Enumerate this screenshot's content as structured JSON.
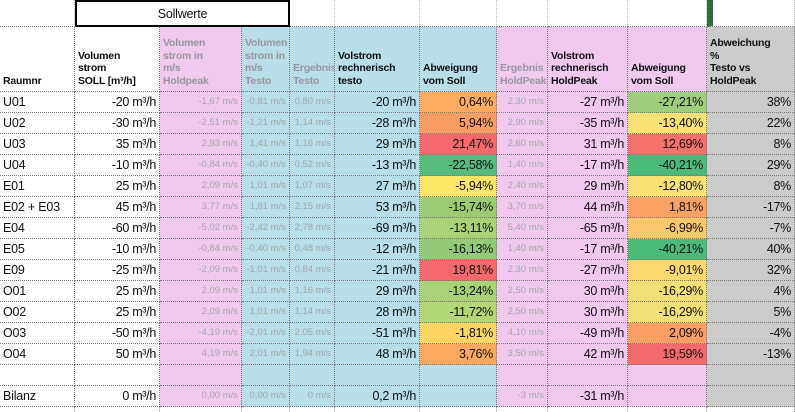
{
  "colors": {
    "pink": "#F1C9EF",
    "blue": "#B7DEE9",
    "grey": "#CBCBCB",
    "dark_green_strip": "#2F6C3B"
  },
  "header": {
    "sollwerte": "Sollwerte",
    "raumnr": "Raumnr",
    "soll": "Volumen\nstrom\nSOLL [m³/h]",
    "hold_ms": "Volumen\nstrom in\nm/s\nHoldpeak",
    "testo_ms": "Volumen\nstrom in\nm/s\nTesto",
    "erg_testo": "Ergebnis\nTesto",
    "vol_testo": "Volstrom\nrechnerisch\ntesto",
    "abw_testo": "Abweigung\nvom Soll",
    "erg_hold": "Ergebnis\nHoldPeak",
    "vol_hold": "Volstrom\nrechnerisch\nHoldPeak",
    "abw_hold": "Abweigung\nvom Soll",
    "pct": "Abweichung\n%\nTesto vs\nHoldPeak"
  },
  "rows": [
    {
      "raumnr": "U01",
      "soll": "-20 m³/h",
      "hold_ms": "-1,67 m/s",
      "testo_ms": "-0,81 m/s",
      "erg_testo": "0,80 m/s",
      "vol_testo": "-20 m³/h",
      "abw_testo": "0,64%",
      "abw_testo_color": "#FCAB61",
      "erg_hold": "2,30 m/s",
      "vol_hold": "-27 m³/h",
      "abw_hold": "-27,21%",
      "abw_hold_color": "#9ECD7B",
      "pct": "38%"
    },
    {
      "raumnr": "U02",
      "soll": "-30 m³/h",
      "hold_ms": "-2,51 m/s",
      "testo_ms": "-1,21 m/s",
      "erg_testo": "1,14 m/s",
      "vol_testo": "-28 m³/h",
      "abw_testo": "5,94%",
      "abw_testo_color": "#FA9C63",
      "erg_hold": "2,90 m/s",
      "vol_hold": "-35 m³/h",
      "abw_hold": "-13,40%",
      "abw_hold_color": "#FAE173",
      "pct": "22%"
    },
    {
      "raumnr": "U03",
      "soll": "35 m³/h",
      "hold_ms": "2,93 m/s",
      "testo_ms": "1,41 m/s",
      "erg_testo": "1,16 m/s",
      "vol_testo": "29 m³/h",
      "abw_testo": "21,47%",
      "abw_testo_color": "#F5696D",
      "erg_hold": "2,60 m/s",
      "vol_hold": "31 m³/h",
      "abw_hold": "12,69%",
      "abw_hold_color": "#F4716C",
      "pct": "8%"
    },
    {
      "raumnr": "U04",
      "soll": "-10 m³/h",
      "hold_ms": "-0,84 m/s",
      "testo_ms": "-0,40 m/s",
      "erg_testo": "0,52 m/s",
      "vol_testo": "-13 m³/h",
      "abw_testo": "-22,58%",
      "abw_testo_color": "#56BB7C",
      "erg_hold": "1,40 m/s",
      "vol_hold": "-17 m³/h",
      "abw_hold": "-40,21%",
      "abw_hold_color": "#4CBB7A",
      "pct": "29%"
    },
    {
      "raumnr": "E01",
      "soll": "25 m³/h",
      "hold_ms": "2,09 m/s",
      "testo_ms": "1,01 m/s",
      "erg_testo": "1,07 m/s",
      "vol_testo": "27 m³/h",
      "abw_testo": "-5,94%",
      "abw_testo_color": "#FDE567",
      "erg_hold": "2,40 m/s",
      "vol_hold": "29 m³/h",
      "abw_hold": "-12,80%",
      "abw_hold_color": "#FAE173",
      "pct": "8%"
    },
    {
      "raumnr": "E02 + E03",
      "soll": "45 m³/h",
      "hold_ms": "3,77 m/s",
      "testo_ms": "1,81 m/s",
      "erg_testo": "2,15 m/s",
      "vol_testo": "53 m³/h",
      "abw_testo": "-15,74%",
      "abw_testo_color": "#9CCB73",
      "erg_hold": "3,70 m/s",
      "vol_hold": "44 m³/h",
      "abw_hold": "1,81%",
      "abw_hold_color": "#FAA263",
      "pct": "-17%"
    },
    {
      "raumnr": "E04",
      "soll": "-60 m³/h",
      "hold_ms": "-5,02 m/s",
      "testo_ms": "-2,42 m/s",
      "erg_testo": "2,78 m/s",
      "vol_testo": "-69 m³/h",
      "abw_testo": "-13,11%",
      "abw_testo_color": "#A8D275",
      "erg_hold": "5,40 m/s",
      "vol_hold": "-65 m³/h",
      "abw_hold": "-6,99%",
      "abw_hold_color": "#FBC76D",
      "pct": "-7%"
    },
    {
      "raumnr": "E05",
      "soll": "-10 m³/h",
      "hold_ms": "-0,84 m/s",
      "testo_ms": "-0,40 m/s",
      "erg_testo": "0,48 m/s",
      "vol_testo": "-12 m³/h",
      "abw_testo": "-16,13%",
      "abw_testo_color": "#94C979",
      "erg_hold": "1,40 m/s",
      "vol_hold": "-17 m³/h",
      "abw_hold": "-40,21%",
      "abw_hold_color": "#4CBB7A",
      "pct": "40%"
    },
    {
      "raumnr": "E09",
      "soll": "-25 m³/h",
      "hold_ms": "-2,09 m/s",
      "testo_ms": "-1,01 m/s",
      "erg_testo": "0,84 m/s",
      "vol_testo": "-21 m³/h",
      "abw_testo": "19,81%",
      "abw_testo_color": "#F5696D",
      "erg_hold": "2,30 m/s",
      "vol_hold": "-27 m³/h",
      "abw_hold": "-9,01%",
      "abw_hold_color": "#FBD96E",
      "pct": "32%"
    },
    {
      "raumnr": "O01",
      "soll": "25 m³/h",
      "hold_ms": "2,09 m/s",
      "testo_ms": "1,01 m/s",
      "erg_testo": "1,16 m/s",
      "vol_testo": "29 m³/h",
      "abw_testo": "-13,24%",
      "abw_testo_color": "#A9D277",
      "erg_hold": "2,50 m/s",
      "vol_hold": "30 m³/h",
      "abw_hold": "-16,29%",
      "abw_hold_color": "#F0E075",
      "pct": "4%"
    },
    {
      "raumnr": "O02",
      "soll": "25 m³/h",
      "hold_ms": "2,09 m/s",
      "testo_ms": "1,01 m/s",
      "erg_testo": "1,14 m/s",
      "vol_testo": "28 m³/h",
      "abw_testo": "-11,72%",
      "abw_testo_color": "#B3D777",
      "erg_hold": "2,50 m/s",
      "vol_hold": "30 m³/h",
      "abw_hold": "-16,29%",
      "abw_hold_color": "#F0E075",
      "pct": "5%"
    },
    {
      "raumnr": "O03",
      "soll": "-50 m³/h",
      "hold_ms": "-4,19 m/s",
      "testo_ms": "-2,01 m/s",
      "erg_testo": "2,05 m/s",
      "vol_testo": "-51 m³/h",
      "abw_testo": "-1,81%",
      "abw_testo_color": "#FDD565",
      "erg_hold": "4,10 m/s",
      "vol_hold": "-49 m³/h",
      "abw_hold": "2,09%",
      "abw_hold_color": "#FA9E64",
      "pct": "-4%"
    },
    {
      "raumnr": "O04",
      "soll": "50 m³/h",
      "hold_ms": "4,19 m/s",
      "testo_ms": "2,01 m/s",
      "erg_testo": "1,94 m/s",
      "vol_testo": "48 m³/h",
      "abw_testo": "3,76%",
      "abw_testo_color": "#FBA95F",
      "erg_hold": "3,50 m/s",
      "vol_hold": "42 m³/h",
      "abw_hold": "19,59%",
      "abw_hold_color": "#F4696B",
      "pct": "-13%"
    },
    {
      "raumnr": "",
      "soll": "",
      "hold_ms": "",
      "testo_ms": "",
      "erg_testo": "",
      "vol_testo": "",
      "abw_testo": "",
      "abw_testo_color": "",
      "erg_hold": "",
      "vol_hold": "",
      "abw_hold": "",
      "abw_hold_color": "",
      "pct": ""
    },
    {
      "raumnr": "Bilanz",
      "soll": "0 m³/h",
      "hold_ms": "0,00 m/s",
      "testo_ms": "0,00 m/s",
      "erg_testo": "0 m/s",
      "vol_testo": "0,2 m³/h",
      "abw_testo": "",
      "abw_testo_color": "",
      "erg_hold": "-3 m/s",
      "vol_hold": "-31 m³/h",
      "abw_hold": "",
      "abw_hold_color": "",
      "pct": ""
    }
  ]
}
